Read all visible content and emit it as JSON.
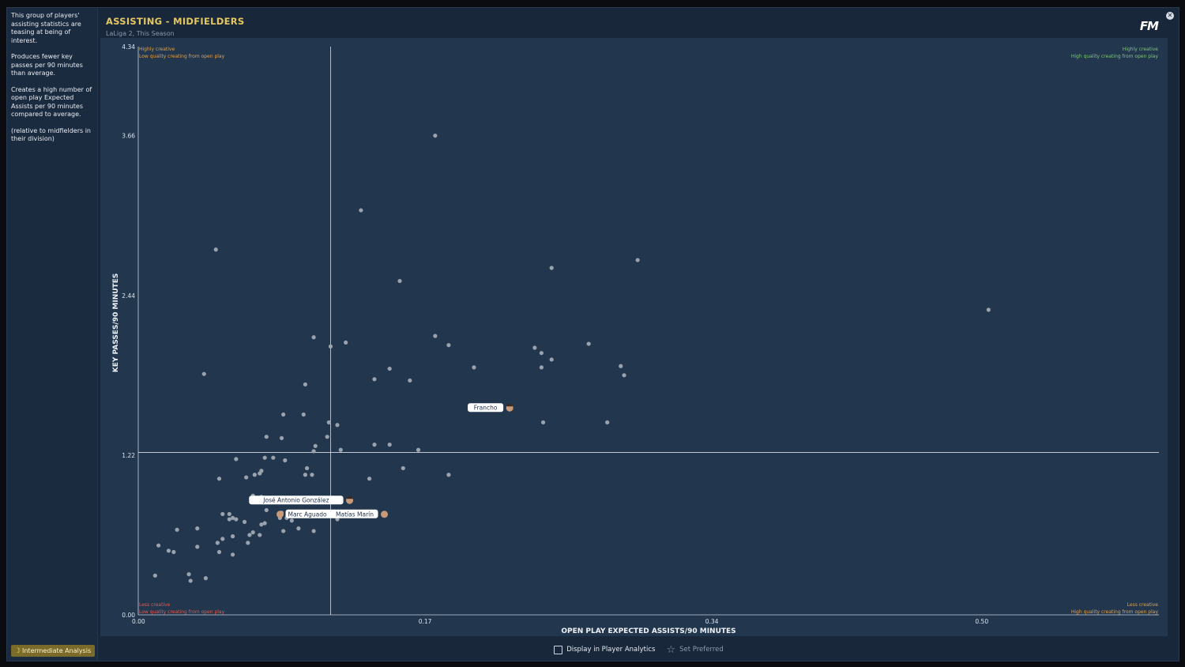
{
  "sidebar": {
    "paragraphs": [
      "This group of players' assisting statistics are teasing at being of interest.",
      "Produces fewer key passes per 90 minutes than average.",
      "Creates a high number of open play Expected Assists per 90 minutes compared to average.",
      "(relative to midfielders in their division)"
    ],
    "analysis_button": "Intermediate Analysis"
  },
  "header": {
    "title": "ASSISTING - MIDFIELDERS",
    "subtitle": "LaLiga 2, This Season",
    "logo": "FM"
  },
  "footer": {
    "display_label": "Display in Player Analytics",
    "preferred_label": "Set Preferred"
  },
  "colors": {
    "background": "#22374e",
    "title": "#e5c761",
    "point": "#9aa3ad",
    "quad_green": "#7fc776",
    "quad_orange": "#e2a04a",
    "quad_red": "#e05a4e"
  },
  "chart_data": {
    "type": "scatter",
    "xlabel": "OPEN PLAY EXPECTED ASSISTS/90 MINUTES",
    "ylabel": "KEY PASSES/90 MINUTES",
    "xlim": [
      0,
      0.605
    ],
    "ylim": [
      0,
      4.34
    ],
    "xticks": [
      "0.00",
      "0.17",
      "0.34",
      "0.50"
    ],
    "xtick_values": [
      0,
      0.17,
      0.34,
      0.5
    ],
    "yticks": [
      "0.00",
      "1.22",
      "2.44",
      "3.66",
      "4.34"
    ],
    "ytick_values": [
      0,
      1.22,
      2.44,
      3.66,
      4.34
    ],
    "x_average": 0.114,
    "y_average": 1.24,
    "quadrants": {
      "top_left": [
        "Highly creative",
        "Low quality creating from open play"
      ],
      "top_right": [
        "Highly creative",
        "High quality creating from open play"
      ],
      "bottom_left": [
        "Less creative",
        "Low quality creating from open play"
      ],
      "bottom_right": [
        "Less creative",
        "High quality creating from open play"
      ]
    },
    "highlighted": [
      {
        "name": "Francho",
        "x": 0.215,
        "y": 1.58
      },
      {
        "name": "José Antonio González",
        "x": 0.1,
        "y": 0.88
      },
      {
        "name": "Marc Aguado",
        "x": 0.085,
        "y": 0.78
      },
      {
        "name": "Matías Marín",
        "x": 0.1,
        "y": 0.78
      }
    ],
    "points": [
      [
        0.176,
        3.66
      ],
      [
        0.132,
        3.09
      ],
      [
        0.046,
        2.79
      ],
      [
        0.296,
        2.71
      ],
      [
        0.245,
        2.65
      ],
      [
        0.155,
        2.55
      ],
      [
        0.504,
        2.33
      ],
      [
        0.104,
        2.12
      ],
      [
        0.123,
        2.08
      ],
      [
        0.114,
        2.05
      ],
      [
        0.176,
        2.13
      ],
      [
        0.184,
        2.06
      ],
      [
        0.235,
        2.04
      ],
      [
        0.239,
        2.0
      ],
      [
        0.245,
        1.95
      ],
      [
        0.267,
        2.07
      ],
      [
        0.199,
        1.89
      ],
      [
        0.149,
        1.88
      ],
      [
        0.14,
        1.8
      ],
      [
        0.161,
        1.79
      ],
      [
        0.239,
        1.89
      ],
      [
        0.286,
        1.9
      ],
      [
        0.039,
        1.84
      ],
      [
        0.099,
        1.76
      ],
      [
        0.215,
        1.58
      ],
      [
        0.288,
        1.83
      ],
      [
        0.24,
        1.47
      ],
      [
        0.278,
        1.47
      ],
      [
        0.086,
        1.53
      ],
      [
        0.098,
        1.53
      ],
      [
        0.113,
        1.47
      ],
      [
        0.118,
        1.45
      ],
      [
        0.085,
        1.35
      ],
      [
        0.076,
        1.36
      ],
      [
        0.112,
        1.36
      ],
      [
        0.105,
        1.29
      ],
      [
        0.104,
        1.25
      ],
      [
        0.12,
        1.26
      ],
      [
        0.14,
        1.3
      ],
      [
        0.149,
        1.3
      ],
      [
        0.166,
        1.26
      ],
      [
        0.058,
        1.19
      ],
      [
        0.075,
        1.2
      ],
      [
        0.08,
        1.2
      ],
      [
        0.087,
        1.18
      ],
      [
        0.1,
        1.12
      ],
      [
        0.099,
        1.07
      ],
      [
        0.157,
        1.12
      ],
      [
        0.069,
        1.07
      ],
      [
        0.072,
        1.08
      ],
      [
        0.073,
        1.1
      ],
      [
        0.064,
        1.05
      ],
      [
        0.048,
        1.04
      ],
      [
        0.137,
        1.04
      ],
      [
        0.103,
        1.07
      ],
      [
        0.184,
        1.07
      ],
      [
        0.068,
        0.91
      ],
      [
        0.073,
        0.9
      ],
      [
        0.086,
        0.89
      ],
      [
        0.095,
        0.88
      ],
      [
        0.1,
        0.88
      ],
      [
        0.085,
        0.78
      ],
      [
        0.1,
        0.78
      ],
      [
        0.076,
        0.8
      ],
      [
        0.05,
        0.77
      ],
      [
        0.054,
        0.77
      ],
      [
        0.056,
        0.74
      ],
      [
        0.058,
        0.73
      ],
      [
        0.063,
        0.71
      ],
      [
        0.073,
        0.69
      ],
      [
        0.075,
        0.7
      ],
      [
        0.084,
        0.74
      ],
      [
        0.091,
        0.72
      ],
      [
        0.118,
        0.73
      ],
      [
        0.088,
        0.74
      ],
      [
        0.054,
        0.73
      ],
      [
        0.023,
        0.65
      ],
      [
        0.035,
        0.66
      ],
      [
        0.068,
        0.63
      ],
      [
        0.095,
        0.66
      ],
      [
        0.056,
        0.6
      ],
      [
        0.05,
        0.58
      ],
      [
        0.072,
        0.61
      ],
      [
        0.086,
        0.64
      ],
      [
        0.104,
        0.64
      ],
      [
        0.065,
        0.55
      ],
      [
        0.012,
        0.53
      ],
      [
        0.035,
        0.52
      ],
      [
        0.018,
        0.49
      ],
      [
        0.021,
        0.48
      ],
      [
        0.048,
        0.48
      ],
      [
        0.056,
        0.46
      ],
      [
        0.01,
        0.3
      ],
      [
        0.03,
        0.31
      ],
      [
        0.031,
        0.26
      ],
      [
        0.04,
        0.28
      ],
      [
        0.047,
        0.55
      ],
      [
        0.066,
        0.61
      ]
    ]
  }
}
